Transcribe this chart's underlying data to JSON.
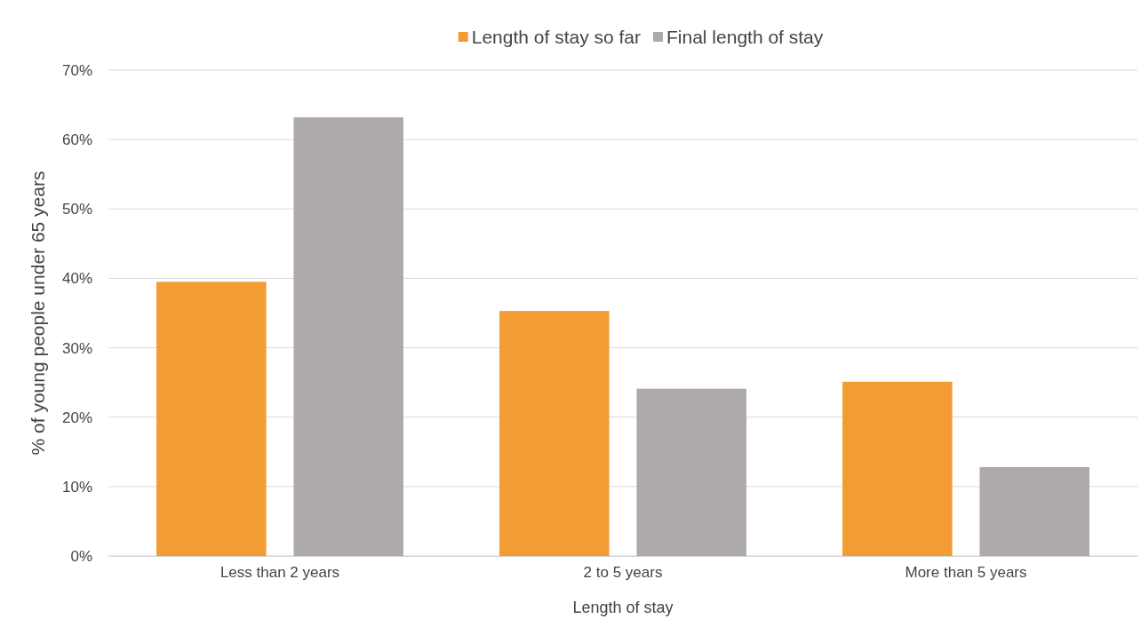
{
  "chart_data": {
    "type": "bar",
    "xlabel": "Length of stay",
    "ylabel": "% of young people under 65 years",
    "categories": [
      "Less than 2 years",
      "2 to 5 years",
      "More than 5 years"
    ],
    "series": [
      {
        "name": "Length of stay so far",
        "color": "#f39c33",
        "values": [
          39.5,
          35.3,
          25.1
        ]
      },
      {
        "name": "Final length of stay",
        "color": "#aeaaaa",
        "values": [
          63.2,
          24.1,
          12.8
        ]
      }
    ],
    "ylim": [
      0,
      70
    ],
    "yticks": [
      {
        "value": 0,
        "label": "0%"
      },
      {
        "value": 10,
        "label": "10%"
      },
      {
        "value": 20,
        "label": "20%"
      },
      {
        "value": 30,
        "label": "30%"
      },
      {
        "value": 40,
        "label": "40%"
      },
      {
        "value": 50,
        "label": "50%"
      },
      {
        "value": 60,
        "label": "60%"
      },
      {
        "value": 70,
        "label": "70%"
      }
    ],
    "grid": "y",
    "legend": "top"
  }
}
